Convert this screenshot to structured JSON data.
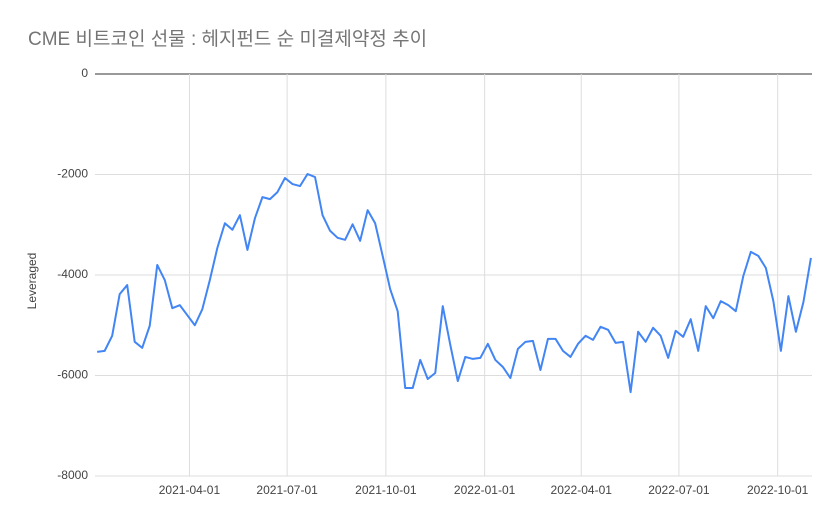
{
  "chart_data": {
    "type": "line",
    "title": "CME 비트코인 선물 : 헤지펀드 순 미결제약정 추이",
    "y_label": "Leveraged",
    "x": [
      "2021-01-05",
      "2021-01-12",
      "2021-01-19",
      "2021-01-26",
      "2021-02-02",
      "2021-02-09",
      "2021-02-16",
      "2021-02-23",
      "2021-03-02",
      "2021-03-09",
      "2021-03-16",
      "2021-03-23",
      "2021-03-30",
      "2021-04-06",
      "2021-04-13",
      "2021-04-20",
      "2021-04-27",
      "2021-05-04",
      "2021-05-11",
      "2021-05-18",
      "2021-05-25",
      "2021-06-01",
      "2021-06-08",
      "2021-06-15",
      "2021-06-22",
      "2021-06-29",
      "2021-07-06",
      "2021-07-13",
      "2021-07-20",
      "2021-07-27",
      "2021-08-03",
      "2021-08-10",
      "2021-08-17",
      "2021-08-24",
      "2021-08-31",
      "2021-09-07",
      "2021-09-14",
      "2021-09-21",
      "2021-09-28",
      "2021-10-05",
      "2021-10-12",
      "2021-10-19",
      "2021-10-26",
      "2021-11-02",
      "2021-11-09",
      "2021-11-16",
      "2021-11-23",
      "2021-11-30",
      "2021-12-07",
      "2021-12-14",
      "2021-12-21",
      "2021-12-28",
      "2022-01-04",
      "2022-01-11",
      "2022-01-18",
      "2022-01-25",
      "2022-02-01",
      "2022-02-08",
      "2022-02-15",
      "2022-02-22",
      "2022-03-01",
      "2022-03-08",
      "2022-03-15",
      "2022-03-22",
      "2022-03-29",
      "2022-04-05",
      "2022-04-12",
      "2022-04-19",
      "2022-04-26",
      "2022-05-03",
      "2022-05-10",
      "2022-05-17",
      "2022-05-24",
      "2022-05-31",
      "2022-06-07",
      "2022-06-14",
      "2022-06-21",
      "2022-06-28",
      "2022-07-05",
      "2022-07-12",
      "2022-07-19",
      "2022-07-26",
      "2022-08-02",
      "2022-08-09",
      "2022-08-16",
      "2022-08-23",
      "2022-08-30",
      "2022-09-06",
      "2022-09-13",
      "2022-09-20",
      "2022-09-27",
      "2022-10-04",
      "2022-10-11",
      "2022-10-18",
      "2022-10-25",
      "2022-11-01"
    ],
    "series": [
      {
        "name": "Leveraged",
        "color": "#4285f4",
        "values": [
          -5530,
          -5510,
          -5210,
          -4380,
          -4200,
          -5330,
          -5450,
          -5010,
          -3800,
          -4100,
          -4660,
          -4600,
          -4800,
          -5000,
          -4680,
          -4100,
          -3460,
          -2970,
          -3100,
          -2810,
          -3500,
          -2870,
          -2450,
          -2490,
          -2350,
          -2070,
          -2190,
          -2230,
          -1990,
          -2050,
          -2810,
          -3120,
          -3260,
          -3300,
          -2990,
          -3320,
          -2710,
          -2970,
          -3620,
          -4280,
          -4720,
          -6250,
          -6250,
          -5690,
          -6070,
          -5950,
          -4620,
          -5390,
          -6110,
          -5630,
          -5670,
          -5650,
          -5370,
          -5690,
          -5830,
          -6050,
          -5470,
          -5330,
          -5310,
          -5890,
          -5270,
          -5270,
          -5510,
          -5630,
          -5370,
          -5210,
          -5290,
          -5030,
          -5090,
          -5350,
          -5330,
          -6330,
          -5130,
          -5330,
          -5050,
          -5210,
          -5650,
          -5110,
          -5230,
          -4880,
          -5510,
          -4620,
          -4860,
          -4520,
          -4600,
          -4720,
          -4020,
          -3540,
          -3620,
          -3860,
          -4520,
          -5510,
          -4420,
          -5130,
          -4540,
          -3660
        ]
      }
    ],
    "xlim": [
      "2021-01-03",
      "2022-11-02"
    ],
    "xticks": [
      "2021-04-01",
      "2021-07-01",
      "2021-10-01",
      "2022-01-01",
      "2022-04-01",
      "2022-07-01",
      "2022-10-01"
    ],
    "ylim": [
      -8000,
      0
    ],
    "yticks": [
      0,
      -2000,
      -4000,
      -6000,
      -8000
    ],
    "grid": true
  }
}
